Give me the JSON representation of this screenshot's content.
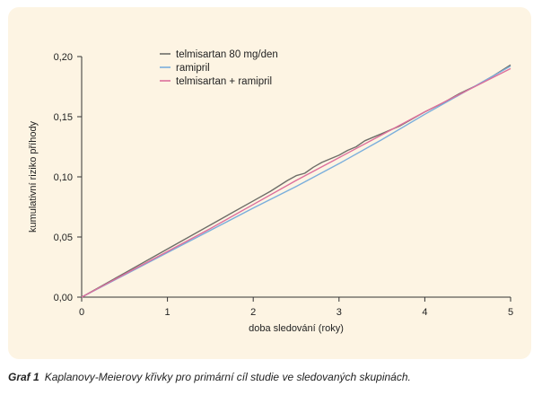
{
  "caption": {
    "label": "Graf 1",
    "text": "Kaplanovy-Meierovy křivky pro primární cíl studie ve sledovaných skupinách."
  },
  "chart_data": {
    "type": "line",
    "title": "",
    "xlabel": "doba sledování (roky)",
    "ylabel": "kumulativní riziko příhody",
    "xlim": [
      0,
      5
    ],
    "ylim": [
      0,
      0.2
    ],
    "x_ticks": [
      0,
      1,
      2,
      3,
      4,
      5
    ],
    "y_ticks": [
      0,
      0.05,
      0.1,
      0.15,
      0.2
    ],
    "x_tick_labels": [
      "0",
      "1",
      "2",
      "3",
      "4",
      "5"
    ],
    "y_tick_labels": [
      "0,00",
      "0,05",
      "0,10",
      "0,15",
      "0,20"
    ],
    "grid": false,
    "legend_position": "top-left",
    "series": [
      {
        "name": "telmisartan 80 mg/den",
        "color": "#6e6e68",
        "x": [
          0,
          0.5,
          1,
          1.5,
          2,
          2.2,
          2.4,
          2.5,
          2.6,
          2.7,
          2.8,
          2.9,
          3,
          3.1,
          3.2,
          3.3,
          3.4,
          3.5,
          3.6,
          3.7,
          3.8,
          3.9,
          4,
          4.2,
          4.4,
          4.6,
          4.8,
          5
        ],
        "y": [
          0,
          0.02,
          0.04,
          0.06,
          0.08,
          0.088,
          0.097,
          0.101,
          0.103,
          0.108,
          0.112,
          0.115,
          0.118,
          0.122,
          0.125,
          0.13,
          0.133,
          0.136,
          0.139,
          0.142,
          0.146,
          0.15,
          0.154,
          0.161,
          0.169,
          0.176,
          0.184,
          0.193
        ]
      },
      {
        "name": "ramipril",
        "color": "#7aaedc",
        "x": [
          0,
          0.5,
          1,
          1.5,
          2,
          2.5,
          3,
          3.5,
          4,
          4.5,
          5
        ],
        "y": [
          0,
          0.0185,
          0.037,
          0.0555,
          0.074,
          0.092,
          0.111,
          0.131,
          0.152,
          0.172,
          0.192
        ]
      },
      {
        "name": "telmisartan + ramipril",
        "color": "#dd6f9c",
        "x": [
          0,
          0.5,
          1,
          1.5,
          2,
          2.5,
          3,
          3.5,
          4,
          4.5,
          5
        ],
        "y": [
          0,
          0.019,
          0.038,
          0.057,
          0.077,
          0.097,
          0.116,
          0.135,
          0.154,
          0.172,
          0.19
        ]
      }
    ]
  }
}
